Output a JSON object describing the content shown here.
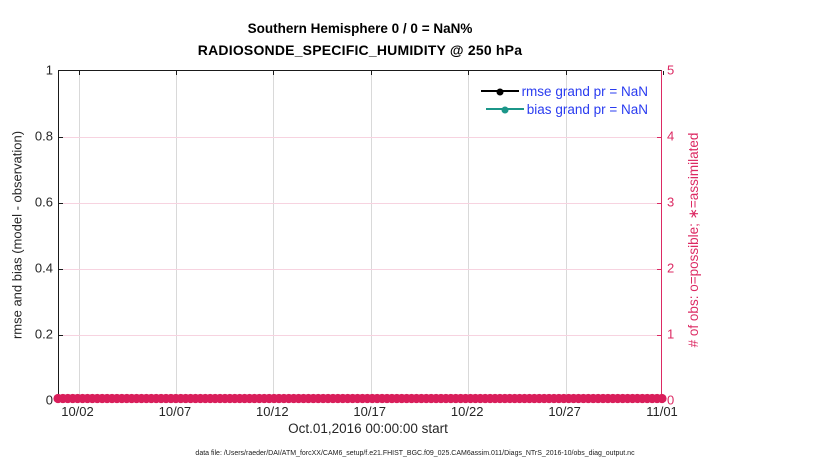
{
  "figure": {
    "title": "Southern Hemisphere 0 / 0 = NaN%",
    "subtitle": "RADIOSONDE_SPECIFIC_HUMIDITY @ 250 hPa",
    "footer": "data file: /Users/raeder/DAI/ATM_forcXX/CAM6_setup/f.e21.FHIST_BGC.f09_025.CAM6assim.011/Diags_NTrS_2016-10/obs_diag_output.nc"
  },
  "chart_data": {
    "type": "line",
    "title": "Southern Hemisphere 0 / 0 = NaN%",
    "subtitle": "RADIOSONDE_SPECIFIC_HUMIDITY @ 250 hPa",
    "xlabel": "Oct.01,2016 00:00:00 start",
    "x_axis": {
      "ticks": [
        "10/02",
        "10/07",
        "10/12",
        "10/17",
        "10/22",
        "10/27",
        "11/01"
      ],
      "start_date": "10/01/2016",
      "end_date": "11/01/2016",
      "days": 31
    },
    "left_axis": {
      "label": "rmse and bias (model - observation)",
      "ticks": [
        "0",
        "0.2",
        "0.4",
        "0.6",
        "0.8",
        "1"
      ],
      "lim": [
        0,
        1
      ],
      "color": "#262626"
    },
    "right_axis": {
      "label": "# of obs: o=possible; ∗=assimilated",
      "ticks": [
        "0",
        "1",
        "2",
        "3",
        "4",
        "5"
      ],
      "lim": [
        0,
        5
      ],
      "color": "#dc2a63"
    },
    "grid": {
      "vertical_color": "#d9d9d9",
      "horizontal_color": "#f7d3e0"
    },
    "legend": {
      "position": "top-right-inside",
      "box": false,
      "text_color": "#2a3cf0",
      "items": [
        {
          "label": "rmse grand pr = NaN",
          "line_color": "#000000",
          "marker": "filled-circle"
        },
        {
          "label": "bias grand pr = NaN",
          "line_color": "#1b9689",
          "marker": "filled-circle"
        }
      ]
    },
    "series": [
      {
        "name": "rmse",
        "axis": "left",
        "color": "#000000",
        "values": [],
        "note": "all values NaN - no curve drawn"
      },
      {
        "name": "bias",
        "axis": "left",
        "color": "#1b9689",
        "values": [],
        "note": "all values NaN - no curve drawn"
      },
      {
        "name": "obs_possible",
        "axis": "right",
        "marker": "o",
        "color": "#d91e5b",
        "constant_value": 0,
        "marker_count": 124
      },
      {
        "name": "obs_assimilated",
        "axis": "right",
        "marker": "*",
        "color": "#d91e5b",
        "constant_value": 0,
        "marker_count": 124
      }
    ]
  }
}
